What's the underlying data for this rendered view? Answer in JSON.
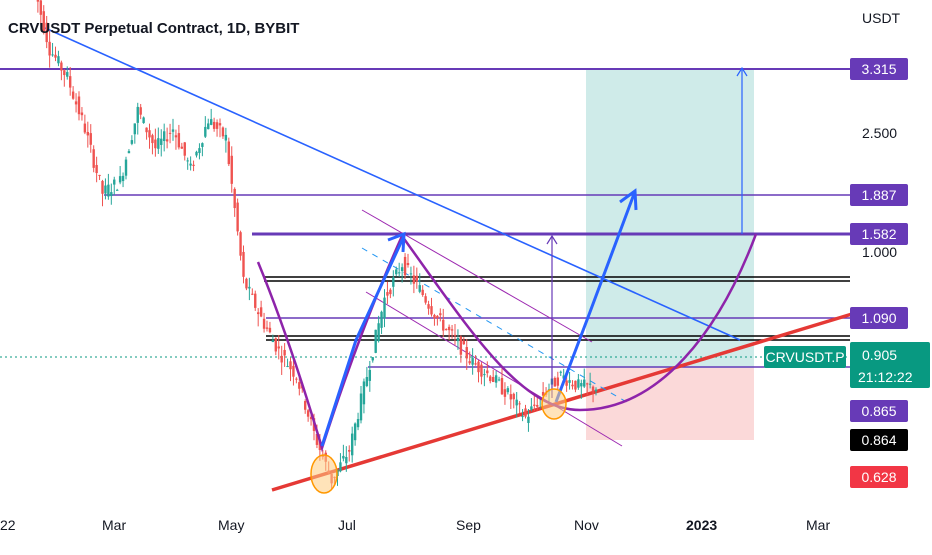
{
  "header": {
    "title": "CRVUSDT Perpetual Contract, 1D, BYBIT",
    "unit": "USDT"
  },
  "chart_data": {
    "type": "candlestick",
    "title": "CRVUSDT Perpetual Contract, 1D, BYBIT",
    "xlabel": "",
    "ylabel": "USDT",
    "scale": "log",
    "grid": false,
    "x_ticks": [
      {
        "label": "22",
        "bold": false
      },
      {
        "label": "Mar",
        "bold": false
      },
      {
        "label": "May",
        "bold": false
      },
      {
        "label": "Jul",
        "bold": false
      },
      {
        "label": "Sep",
        "bold": false
      },
      {
        "label": "Nov",
        "bold": false
      },
      {
        "label": "2023",
        "bold": true
      },
      {
        "label": "Mar",
        "bold": false
      }
    ],
    "y_ticks": [
      "2.500",
      "1.000"
    ],
    "price_badges": [
      {
        "label": "3.315",
        "value": 3.315,
        "color": "#673ab7"
      },
      {
        "label": "1.887",
        "value": 1.887,
        "color": "#673ab7"
      },
      {
        "label": "1.582",
        "value": 1.582,
        "color": "#673ab7"
      },
      {
        "label": "1.090",
        "value": 1.09,
        "color": "#673ab7"
      },
      {
        "label": "0.865",
        "value": 0.865,
        "color": "#673ab7"
      },
      {
        "label": "0.864",
        "value": 0.864,
        "color": "#000000"
      },
      {
        "label": "0.628",
        "value": 0.628,
        "color": "#f23645"
      }
    ],
    "last_price": {
      "symbol": "CRVUSDT.P",
      "value": "0.905",
      "countdown": "21:12:22",
      "color": "#089981"
    },
    "series": [
      {
        "name": "CRVUSDT",
        "approx_closes": [
          4.8,
          3.6,
          3.2,
          2.6,
          2.0,
          2.1,
          2.8,
          2.4,
          2.6,
          2.2,
          2.7,
          2.5,
          1.4,
          1.2,
          1.05,
          0.95,
          0.75,
          0.62,
          0.7,
          0.95,
          1.3,
          1.5,
          1.35,
          1.2,
          1.1,
          1.0,
          0.95,
          0.88,
          0.8,
          0.88,
          0.95,
          0.91,
          0.905
        ]
      }
    ]
  },
  "drawings": {
    "colors": {
      "level": "#673ab7",
      "trend": "#2962ff",
      "support": "#e53935",
      "channel": "#9c27b0",
      "target_zone": "#26a69a",
      "stop_zone": "#ef5350",
      "marker": "#ff9800"
    }
  }
}
